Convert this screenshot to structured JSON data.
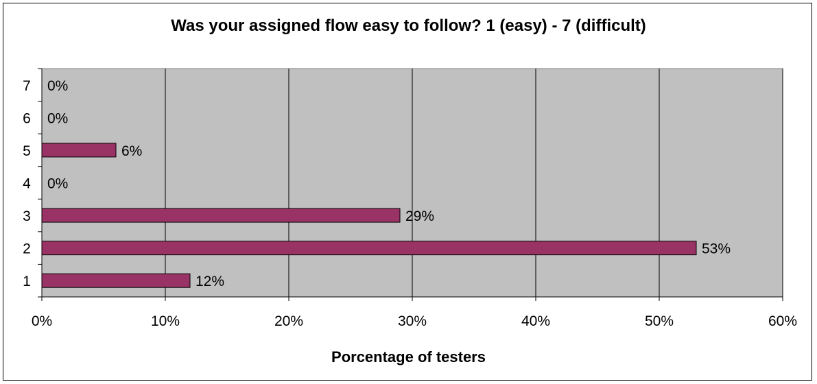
{
  "chart_data": {
    "type": "bar",
    "orientation": "horizontal",
    "title": "Was your assigned flow easy to follow? 1 (easy) - 7 (difficult)",
    "xlabel": "Porcentage of testers",
    "ylabel": "",
    "categories": [
      "1",
      "2",
      "3",
      "4",
      "5",
      "6",
      "7"
    ],
    "values": [
      12,
      53,
      29,
      0,
      6,
      0,
      0
    ],
    "value_labels": [
      "12%",
      "53%",
      "29%",
      "0%",
      "6%",
      "0%",
      "0%"
    ],
    "xlim": [
      0,
      60
    ],
    "xticks": [
      "0%",
      "10%",
      "20%",
      "30%",
      "40%",
      "50%",
      "60%"
    ],
    "grid": true,
    "legend": "none",
    "colors": {
      "bar": "#993366",
      "plot_background": "#c0c0c0",
      "gridline": "#000000"
    }
  }
}
